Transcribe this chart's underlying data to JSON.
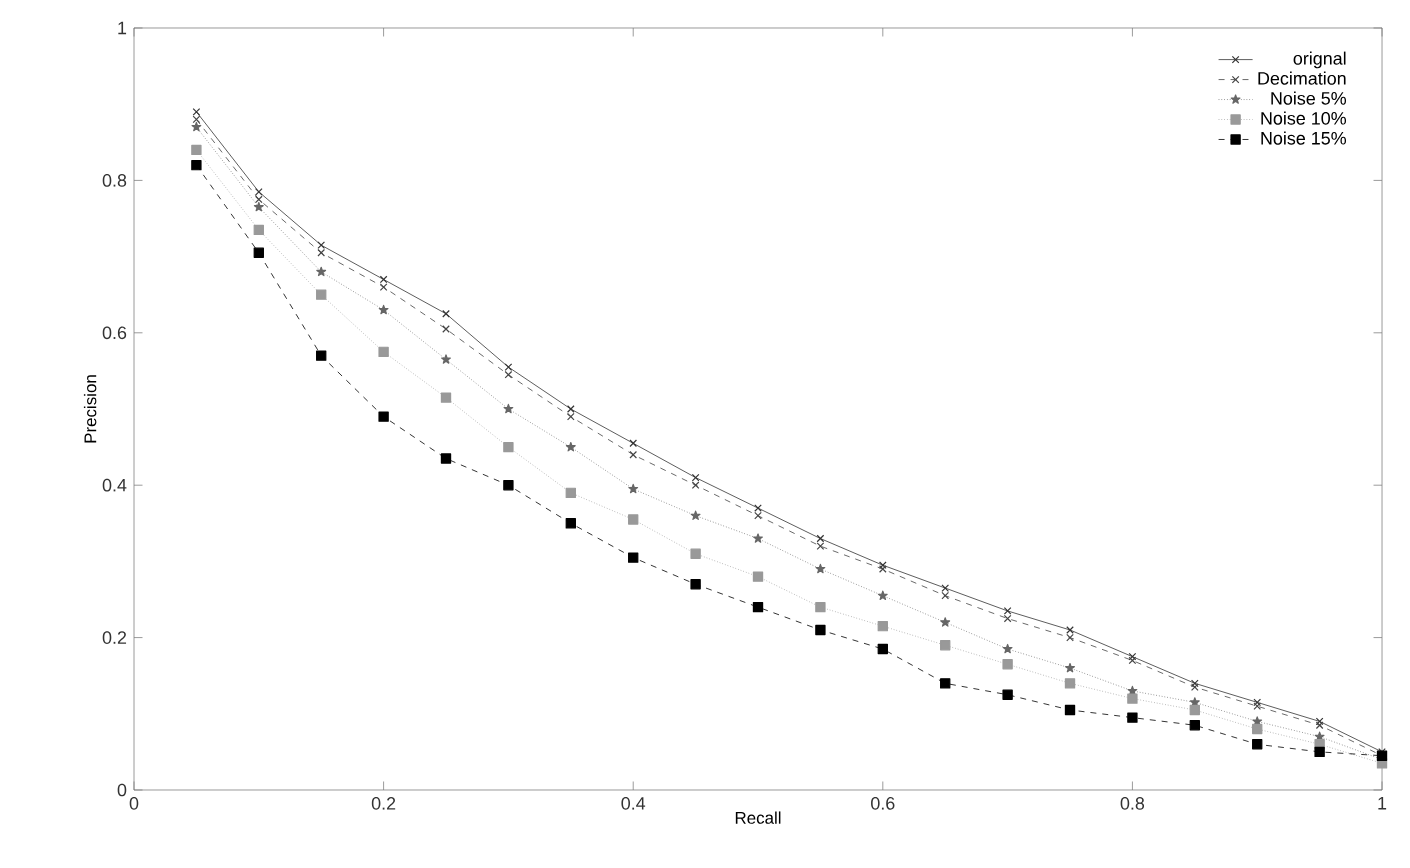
{
  "chart_data": {
    "type": "line",
    "xlabel": "Recall",
    "ylabel": "Precision",
    "x": [
      0.05,
      0.1,
      0.15,
      0.2,
      0.25,
      0.3,
      0.35,
      0.4,
      0.45,
      0.5,
      0.55,
      0.6,
      0.65,
      0.7,
      0.75,
      0.8,
      0.85,
      0.9,
      0.95,
      1
    ],
    "xlim": [
      0,
      1
    ],
    "ylim": [
      0,
      1
    ],
    "xticks": [
      0,
      0.2,
      0.4,
      0.6,
      0.8,
      1
    ],
    "yticks": [
      0,
      0.2,
      0.4,
      0.6,
      0.8,
      1
    ],
    "legend": "top right",
    "grid": false,
    "series": [
      {
        "name": "orignal",
        "color": "#333333",
        "marker": "cross",
        "line_style": "solid",
        "values": [
          0.89,
          0.785,
          0.715,
          0.67,
          0.625,
          0.555,
          0.5,
          0.455,
          0.41,
          0.37,
          0.33,
          0.295,
          0.265,
          0.235,
          0.21,
          0.175,
          0.14,
          0.115,
          0.09,
          0.05
        ]
      },
      {
        "name": "Decimation",
        "color": "#444444",
        "marker": "cross",
        "line_style": "dashed",
        "values": [
          0.88,
          0.775,
          0.705,
          0.66,
          0.605,
          0.545,
          0.49,
          0.44,
          0.4,
          0.36,
          0.32,
          0.29,
          0.255,
          0.225,
          0.2,
          0.17,
          0.135,
          0.11,
          0.085,
          0.045
        ]
      },
      {
        "name": "Noise 5%",
        "color": "#666666",
        "marker": "star",
        "line_style": "dotted",
        "values": [
          0.87,
          0.765,
          0.68,
          0.63,
          0.565,
          0.5,
          0.45,
          0.395,
          0.36,
          0.33,
          0.29,
          0.255,
          0.22,
          0.185,
          0.16,
          0.13,
          0.115,
          0.09,
          0.07,
          0.04
        ]
      },
      {
        "name": "Noise 10%",
        "color": "#999999",
        "marker": "square",
        "line_style": "dotted",
        "values": [
          0.84,
          0.735,
          0.65,
          0.575,
          0.515,
          0.45,
          0.39,
          0.355,
          0.31,
          0.28,
          0.24,
          0.215,
          0.19,
          0.165,
          0.14,
          0.12,
          0.105,
          0.08,
          0.06,
          0.035
        ]
      },
      {
        "name": "Noise 15%",
        "color": "#000000",
        "marker": "square",
        "line_style": "dashed",
        "values": [
          0.82,
          0.705,
          0.57,
          0.49,
          0.435,
          0.4,
          0.35,
          0.305,
          0.27,
          0.24,
          0.21,
          0.185,
          0.14,
          0.125,
          0.105,
          0.095,
          0.085,
          0.06,
          0.05,
          0.045
        ]
      }
    ]
  }
}
